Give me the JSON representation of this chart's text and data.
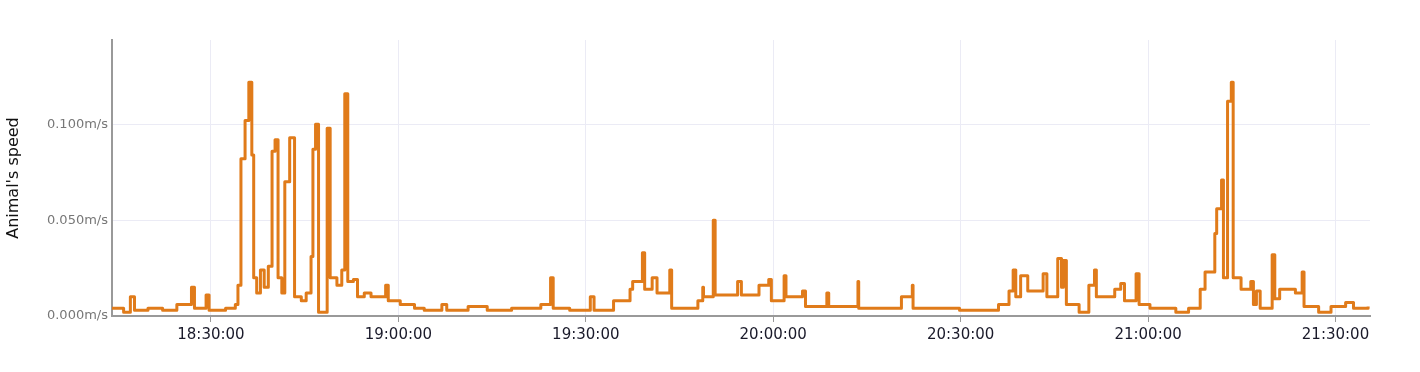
{
  "chart_data": {
    "type": "step",
    "ylabel": "Animal's speed",
    "x": [
      18.236,
      18.267,
      18.285,
      18.296,
      18.332,
      18.371,
      18.409,
      18.448,
      18.456,
      18.487,
      18.495,
      18.539,
      18.565,
      18.572,
      18.58,
      18.591,
      18.601,
      18.609,
      18.614,
      18.622,
      18.632,
      18.642,
      18.653,
      18.663,
      18.671,
      18.679,
      18.689,
      18.697,
      18.71,
      18.723,
      18.741,
      18.754,
      18.767,
      18.772,
      18.779,
      18.787,
      18.81,
      18.818,
      18.836,
      18.849,
      18.857,
      18.865,
      18.88,
      18.891,
      18.909,
      18.927,
      18.966,
      18.973,
      19.005,
      19.043,
      19.069,
      19.116,
      19.129,
      19.186,
      19.237,
      19.302,
      19.38,
      19.406,
      19.413,
      19.457,
      19.512,
      19.522,
      19.574,
      19.618,
      19.625,
      19.651,
      19.657,
      19.677,
      19.69,
      19.724,
      19.729,
      19.799,
      19.812,
      19.814,
      19.84,
      19.845,
      19.905,
      19.915,
      19.962,
      19.988,
      19.995,
      20.029,
      20.034,
      20.078,
      20.086,
      20.143,
      20.148,
      20.226,
      20.228,
      20.342,
      20.371,
      20.373,
      20.497,
      20.601,
      20.629,
      20.64,
      20.647,
      20.66,
      20.679,
      20.72,
      20.73,
      20.759,
      20.769,
      20.774,
      20.782,
      20.816,
      20.842,
      20.857,
      20.862,
      20.911,
      20.927,
      20.937,
      20.968,
      20.976,
      21.005,
      21.074,
      21.108,
      21.139,
      21.152,
      21.178,
      21.183,
      21.196,
      21.201,
      21.212,
      21.222,
      21.227,
      21.248,
      21.274,
      21.281,
      21.289,
      21.299,
      21.331,
      21.338,
      21.351,
      21.393,
      21.411,
      21.416,
      21.455,
      21.488,
      21.527,
      21.548,
      21.587
    ],
    "series": [
      {
        "color": "#e07b1a",
        "values": [
          0.004,
          0.002,
          0.01,
          0.003,
          0.004,
          0.003,
          0.006,
          0.015,
          0.004,
          0.011,
          0.003,
          0.004,
          0.006,
          0.016,
          0.082,
          0.102,
          0.122,
          0.084,
          0.02,
          0.012,
          0.024,
          0.015,
          0.026,
          0.086,
          0.092,
          0.02,
          0.012,
          0.07,
          0.093,
          0.01,
          0.008,
          0.012,
          0.031,
          0.087,
          0.1,
          0.002,
          0.098,
          0.02,
          0.016,
          0.024,
          0.116,
          0.018,
          0.019,
          0.01,
          0.012,
          0.01,
          0.016,
          0.008,
          0.006,
          0.004,
          0.003,
          0.006,
          0.003,
          0.005,
          0.003,
          0.004,
          0.006,
          0.02,
          0.004,
          0.003,
          0.01,
          0.003,
          0.008,
          0.014,
          0.018,
          0.033,
          0.014,
          0.02,
          0.012,
          0.024,
          0.004,
          0.008,
          0.015,
          0.01,
          0.05,
          0.011,
          0.018,
          0.011,
          0.016,
          0.019,
          0.008,
          0.021,
          0.01,
          0.013,
          0.005,
          0.012,
          0.005,
          0.018,
          0.004,
          0.01,
          0.016,
          0.004,
          0.003,
          0.006,
          0.013,
          0.024,
          0.01,
          0.021,
          0.013,
          0.022,
          0.01,
          0.03,
          0.015,
          0.029,
          0.006,
          0.002,
          0.016,
          0.024,
          0.01,
          0.014,
          0.017,
          0.008,
          0.022,
          0.006,
          0.004,
          0.002,
          0.004,
          0.014,
          0.023,
          0.043,
          0.056,
          0.071,
          0.02,
          0.112,
          0.122,
          0.02,
          0.014,
          0.018,
          0.006,
          0.013,
          0.004,
          0.032,
          0.009,
          0.014,
          0.012,
          0.023,
          0.005,
          0.002,
          0.005,
          0.007,
          0.004,
          0.005
        ]
      }
    ],
    "xlim": [
      18.236,
      21.592
    ],
    "xticks": [
      {
        "value": 18.5,
        "label": "18:30:00"
      },
      {
        "value": 19,
        "label": "19:00:00"
      },
      {
        "value": 19.5,
        "label": "19:30:00"
      },
      {
        "value": 20,
        "label": "20:00:00"
      },
      {
        "value": 20.5,
        "label": "20:30:00"
      },
      {
        "value": 21,
        "label": "21:00:00"
      },
      {
        "value": 21.5,
        "label": "21:30:00"
      }
    ],
    "ylim": [
      0,
      0.144
    ],
    "yticks": [
      {
        "value": 0,
        "label": "0.000m/s"
      },
      {
        "value": 0.05,
        "label": "0.050m/s"
      },
      {
        "value": 0.1,
        "label": "0.100m/s"
      }
    ],
    "grid": true,
    "legend": false,
    "marker": "none",
    "line_style": "solid"
  }
}
